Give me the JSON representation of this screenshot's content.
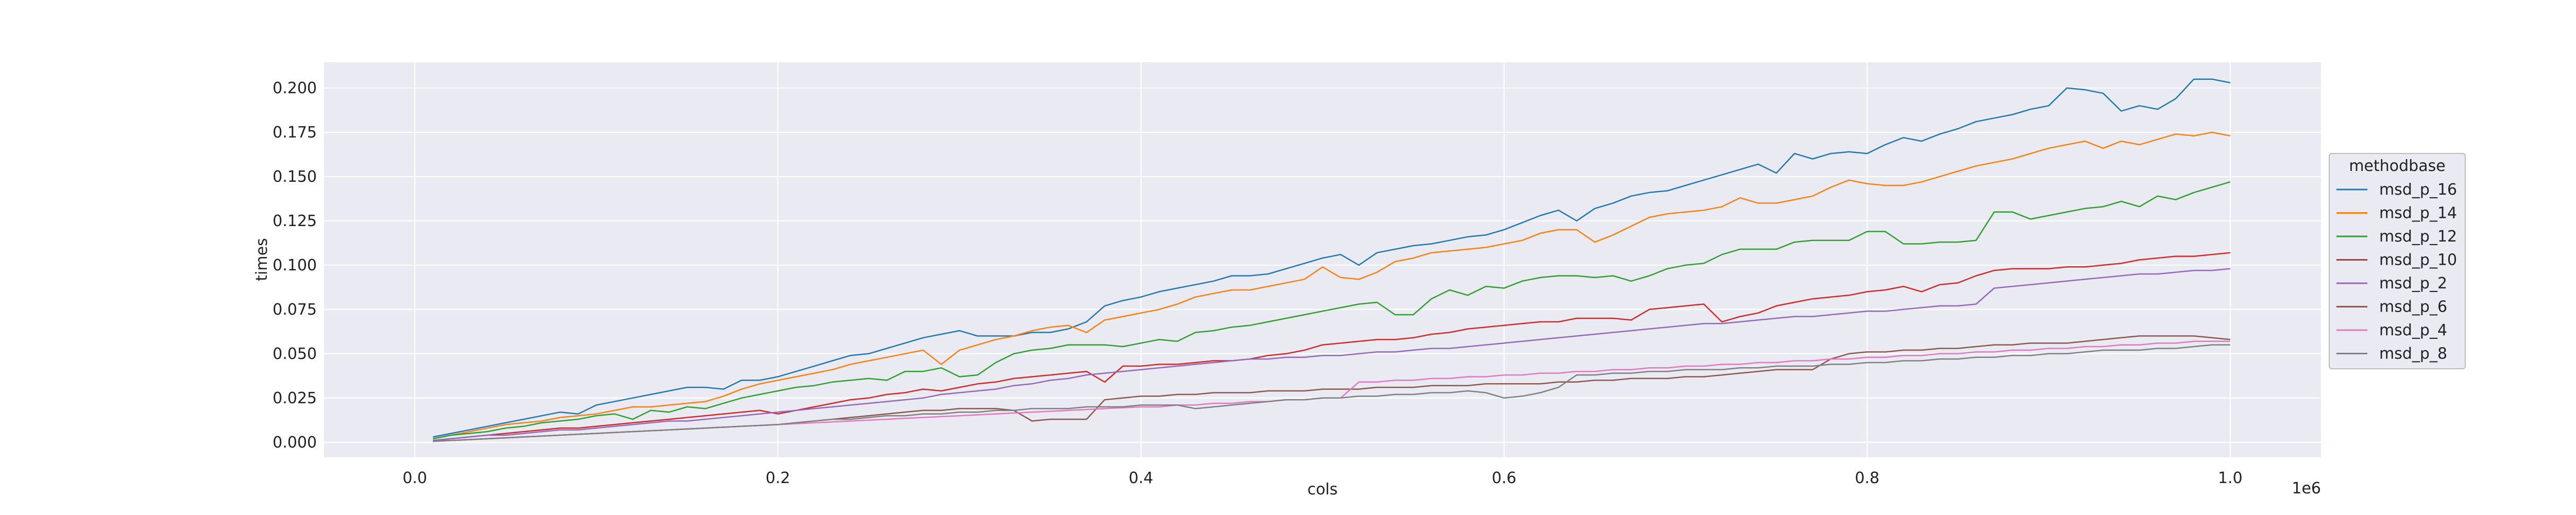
{
  "chart_data": {
    "type": "line",
    "xlabel": "cols",
    "ylabel": "times",
    "x_exponent_label": "1e6",
    "xlim": [
      -50000,
      1050000
    ],
    "ylim": [
      -0.0085,
      0.2145
    ],
    "x_ticks": [
      0,
      0.2,
      0.4,
      0.6,
      0.8,
      1.0
    ],
    "x_tick_labels": [
      "0.0",
      "0.2",
      "0.4",
      "0.6",
      "0.8",
      "1.0"
    ],
    "x_tick_values": [
      0,
      200000,
      400000,
      600000,
      800000,
      1000000
    ],
    "y_ticks": [
      0.0,
      0.025,
      0.05,
      0.075,
      0.1,
      0.125,
      0.15,
      0.175,
      0.2
    ],
    "y_tick_labels": [
      "0.000",
      "0.025",
      "0.050",
      "0.075",
      "0.100",
      "0.125",
      "0.150",
      "0.175",
      "0.200"
    ],
    "grid": true,
    "legend_title": "methodbase",
    "legend_position": "right",
    "x": [
      10000,
      20000,
      30000,
      40000,
      50000,
      60000,
      70000,
      80000,
      90000,
      100000,
      110000,
      120000,
      130000,
      140000,
      150000,
      160000,
      170000,
      180000,
      190000,
      200000,
      210000,
      220000,
      230000,
      240000,
      250000,
      260000,
      270000,
      280000,
      290000,
      300000,
      310000,
      320000,
      330000,
      340000,
      350000,
      360000,
      370000,
      380000,
      390000,
      400000,
      410000,
      420000,
      430000,
      440000,
      450000,
      460000,
      470000,
      480000,
      490000,
      500000,
      510000,
      520000,
      530000,
      540000,
      550000,
      560000,
      570000,
      580000,
      590000,
      600000,
      610000,
      620000,
      630000,
      640000,
      650000,
      660000,
      670000,
      680000,
      690000,
      700000,
      710000,
      720000,
      730000,
      740000,
      750000,
      760000,
      770000,
      780000,
      790000,
      800000,
      810000,
      820000,
      830000,
      840000,
      850000,
      860000,
      870000,
      880000,
      890000,
      900000,
      910000,
      920000,
      930000,
      940000,
      950000,
      960000,
      970000,
      980000,
      990000,
      1000000
    ],
    "series": [
      {
        "name": "msd_p_16",
        "color": "#1f77b4",
        "values": [
          0.003,
          0.005,
          0.007,
          0.009,
          0.011,
          0.013,
          0.015,
          0.017,
          0.016,
          0.021,
          0.023,
          0.025,
          0.027,
          0.029,
          0.031,
          0.031,
          0.03,
          0.035,
          0.035,
          0.037,
          0.04,
          0.043,
          0.046,
          0.049,
          0.05,
          0.053,
          0.056,
          0.059,
          0.061,
          0.063,
          0.06,
          0.06,
          0.06,
          0.062,
          0.062,
          0.064,
          0.068,
          0.077,
          0.08,
          0.082,
          0.085,
          0.087,
          0.089,
          0.091,
          0.094,
          0.094,
          0.095,
          0.098,
          0.101,
          0.104,
          0.106,
          0.1,
          0.107,
          0.109,
          0.111,
          0.112,
          0.114,
          0.116,
          0.117,
          0.12,
          0.124,
          0.128,
          0.131,
          0.125,
          0.132,
          0.135,
          0.139,
          0.141,
          0.142,
          0.145,
          0.148,
          0.151,
          0.154,
          0.157,
          0.152,
          0.163,
          0.16,
          0.163,
          0.164,
          0.163,
          0.168,
          0.172,
          0.17,
          0.174,
          0.177,
          0.181,
          0.183,
          0.185,
          0.188,
          0.19,
          0.2,
          0.199,
          0.197,
          0.187,
          0.19,
          0.188,
          0.194,
          0.205,
          0.205,
          0.203
        ]
      },
      {
        "name": "msd_p_14",
        "color": "#ff7f0e",
        "values": [
          0.002,
          0.004,
          0.006,
          0.008,
          0.01,
          0.011,
          0.012,
          0.014,
          0.015,
          0.016,
          0.018,
          0.02,
          0.02,
          0.021,
          0.022,
          0.023,
          0.026,
          0.03,
          0.033,
          0.035,
          0.037,
          0.039,
          0.041,
          0.044,
          0.046,
          0.048,
          0.05,
          0.052,
          0.044,
          0.052,
          0.055,
          0.058,
          0.06,
          0.063,
          0.065,
          0.066,
          0.062,
          0.069,
          0.071,
          0.073,
          0.075,
          0.078,
          0.082,
          0.084,
          0.086,
          0.086,
          0.088,
          0.09,
          0.092,
          0.099,
          0.093,
          0.092,
          0.096,
          0.102,
          0.104,
          0.107,
          0.108,
          0.109,
          0.11,
          0.112,
          0.114,
          0.118,
          0.12,
          0.12,
          0.113,
          0.117,
          0.122,
          0.127,
          0.129,
          0.13,
          0.131,
          0.133,
          0.138,
          0.135,
          0.135,
          0.137,
          0.139,
          0.144,
          0.148,
          0.146,
          0.145,
          0.145,
          0.147,
          0.15,
          0.153,
          0.156,
          0.158,
          0.16,
          0.163,
          0.166,
          0.168,
          0.17,
          0.166,
          0.17,
          0.168,
          0.171,
          0.174,
          0.173,
          0.175,
          0.173
        ]
      },
      {
        "name": "msd_p_12",
        "color": "#2ca02c",
        "values": [
          0.002,
          0.004,
          0.005,
          0.006,
          0.008,
          0.009,
          0.011,
          0.012,
          0.013,
          0.015,
          0.016,
          0.013,
          0.018,
          0.017,
          0.02,
          0.019,
          0.022,
          0.025,
          0.027,
          0.029,
          0.031,
          0.032,
          0.034,
          0.035,
          0.036,
          0.035,
          0.04,
          0.04,
          0.042,
          0.037,
          0.038,
          0.045,
          0.05,
          0.052,
          0.053,
          0.055,
          0.055,
          0.055,
          0.054,
          0.056,
          0.058,
          0.057,
          0.062,
          0.063,
          0.065,
          0.066,
          0.068,
          0.07,
          0.072,
          0.074,
          0.076,
          0.078,
          0.079,
          0.072,
          0.072,
          0.081,
          0.086,
          0.083,
          0.088,
          0.087,
          0.091,
          0.093,
          0.094,
          0.094,
          0.093,
          0.094,
          0.091,
          0.094,
          0.098,
          0.1,
          0.101,
          0.106,
          0.109,
          0.109,
          0.109,
          0.113,
          0.114,
          0.114,
          0.114,
          0.119,
          0.119,
          0.112,
          0.112,
          0.113,
          0.113,
          0.114,
          0.13,
          0.13,
          0.126,
          0.128,
          0.13,
          0.132,
          0.133,
          0.136,
          0.133,
          0.139,
          0.137,
          0.141,
          0.144,
          0.147
        ]
      },
      {
        "name": "msd_p_10",
        "color": "#d62728",
        "values": [
          0.001,
          0.002,
          0.003,
          0.004,
          0.005,
          0.006,
          0.007,
          0.008,
          0.008,
          0.009,
          0.01,
          0.011,
          0.012,
          0.013,
          0.014,
          0.015,
          0.016,
          0.017,
          0.018,
          0.016,
          0.018,
          0.02,
          0.022,
          0.024,
          0.025,
          0.027,
          0.028,
          0.03,
          0.029,
          0.031,
          0.033,
          0.034,
          0.036,
          0.037,
          0.038,
          0.039,
          0.04,
          0.034,
          0.043,
          0.043,
          0.044,
          0.044,
          0.045,
          0.046,
          0.046,
          0.047,
          0.049,
          0.05,
          0.052,
          0.055,
          0.056,
          0.057,
          0.058,
          0.058,
          0.059,
          0.061,
          0.062,
          0.064,
          0.065,
          0.066,
          0.067,
          0.068,
          0.068,
          0.07,
          0.07,
          0.07,
          0.069,
          0.075,
          0.076,
          0.077,
          0.078,
          0.068,
          0.071,
          0.073,
          0.077,
          0.079,
          0.081,
          0.082,
          0.083,
          0.085,
          0.086,
          0.088,
          0.085,
          0.089,
          0.09,
          0.094,
          0.097,
          0.098,
          0.098,
          0.098,
          0.099,
          0.099,
          0.1,
          0.101,
          0.103,
          0.104,
          0.105,
          0.105,
          0.106,
          0.107
        ]
      },
      {
        "name": "msd_p_2",
        "color": "#9467bd",
        "values": [
          0.001,
          0.002,
          0.003,
          0.004,
          0.004,
          0.005,
          0.006,
          0.007,
          0.007,
          0.008,
          0.009,
          0.01,
          0.011,
          0.012,
          0.012,
          0.013,
          0.014,
          0.015,
          0.016,
          0.017,
          0.018,
          0.019,
          0.02,
          0.021,
          0.022,
          0.023,
          0.024,
          0.025,
          0.027,
          0.028,
          0.029,
          0.03,
          0.032,
          0.033,
          0.035,
          0.036,
          0.038,
          0.039,
          0.04,
          0.041,
          0.042,
          0.043,
          0.044,
          0.045,
          0.046,
          0.047,
          0.047,
          0.048,
          0.048,
          0.049,
          0.049,
          0.05,
          0.051,
          0.051,
          0.052,
          0.053,
          0.053,
          0.054,
          0.055,
          0.056,
          0.057,
          0.058,
          0.059,
          0.06,
          0.061,
          0.062,
          0.063,
          0.064,
          0.065,
          0.066,
          0.067,
          0.067,
          0.068,
          0.069,
          0.07,
          0.071,
          0.071,
          0.072,
          0.073,
          0.074,
          0.074,
          0.075,
          0.076,
          0.077,
          0.077,
          0.078,
          0.087,
          0.088,
          0.089,
          0.09,
          0.091,
          0.092,
          0.093,
          0.094,
          0.095,
          0.095,
          0.096,
          0.097,
          0.097,
          0.098
        ]
      },
      {
        "name": "msd_p_6",
        "color": "#8c564b",
        "values": [
          0.0005,
          0.001,
          0.0015,
          0.002,
          0.0025,
          0.003,
          0.0035,
          0.004,
          0.0045,
          0.005,
          0.0055,
          0.006,
          0.0065,
          0.007,
          0.0075,
          0.008,
          0.0085,
          0.009,
          0.0095,
          0.01,
          0.011,
          0.012,
          0.013,
          0.014,
          0.015,
          0.016,
          0.017,
          0.018,
          0.018,
          0.019,
          0.019,
          0.019,
          0.018,
          0.012,
          0.013,
          0.013,
          0.013,
          0.024,
          0.025,
          0.026,
          0.026,
          0.027,
          0.027,
          0.028,
          0.028,
          0.028,
          0.029,
          0.029,
          0.029,
          0.03,
          0.03,
          0.03,
          0.031,
          0.031,
          0.031,
          0.032,
          0.032,
          0.032,
          0.033,
          0.033,
          0.033,
          0.033,
          0.034,
          0.034,
          0.035,
          0.035,
          0.036,
          0.036,
          0.036,
          0.037,
          0.037,
          0.038,
          0.039,
          0.04,
          0.041,
          0.041,
          0.041,
          0.047,
          0.05,
          0.051,
          0.051,
          0.052,
          0.052,
          0.053,
          0.053,
          0.054,
          0.055,
          0.055,
          0.056,
          0.056,
          0.056,
          0.057,
          0.058,
          0.059,
          0.06,
          0.06,
          0.06,
          0.06,
          0.059,
          0.058
        ]
      },
      {
        "name": "msd_p_4",
        "color": "#e377c2",
        "values": [
          0.0005,
          0.001,
          0.0015,
          0.002,
          0.0025,
          0.003,
          0.0035,
          0.004,
          0.0045,
          0.005,
          0.0055,
          0.006,
          0.0065,
          0.007,
          0.0075,
          0.008,
          0.0085,
          0.009,
          0.0095,
          0.01,
          0.0105,
          0.011,
          0.0115,
          0.012,
          0.0125,
          0.013,
          0.0135,
          0.014,
          0.0145,
          0.015,
          0.0155,
          0.016,
          0.0165,
          0.017,
          0.0175,
          0.018,
          0.0185,
          0.019,
          0.0195,
          0.02,
          0.02,
          0.021,
          0.021,
          0.022,
          0.022,
          0.023,
          0.023,
          0.024,
          0.024,
          0.025,
          0.025,
          0.034,
          0.034,
          0.035,
          0.035,
          0.036,
          0.036,
          0.037,
          0.037,
          0.038,
          0.038,
          0.039,
          0.039,
          0.04,
          0.04,
          0.041,
          0.041,
          0.042,
          0.042,
          0.043,
          0.043,
          0.044,
          0.044,
          0.045,
          0.045,
          0.046,
          0.046,
          0.047,
          0.047,
          0.048,
          0.048,
          0.049,
          0.049,
          0.05,
          0.05,
          0.051,
          0.051,
          0.052,
          0.052,
          0.053,
          0.053,
          0.054,
          0.054,
          0.055,
          0.055,
          0.056,
          0.056,
          0.057,
          0.057,
          0.057
        ]
      },
      {
        "name": "msd_p_8",
        "color": "#7f7f7f",
        "values": [
          0.0005,
          0.001,
          0.0015,
          0.002,
          0.0025,
          0.003,
          0.0035,
          0.004,
          0.0045,
          0.005,
          0.0055,
          0.006,
          0.0065,
          0.007,
          0.0075,
          0.008,
          0.0085,
          0.009,
          0.0095,
          0.01,
          0.011,
          0.012,
          0.013,
          0.013,
          0.014,
          0.015,
          0.015,
          0.016,
          0.016,
          0.017,
          0.017,
          0.018,
          0.018,
          0.019,
          0.019,
          0.019,
          0.02,
          0.02,
          0.02,
          0.021,
          0.021,
          0.021,
          0.019,
          0.02,
          0.021,
          0.022,
          0.023,
          0.024,
          0.024,
          0.025,
          0.025,
          0.026,
          0.026,
          0.027,
          0.027,
          0.028,
          0.028,
          0.029,
          0.028,
          0.025,
          0.026,
          0.028,
          0.031,
          0.038,
          0.038,
          0.039,
          0.039,
          0.04,
          0.04,
          0.041,
          0.041,
          0.041,
          0.042,
          0.042,
          0.043,
          0.043,
          0.043,
          0.044,
          0.044,
          0.045,
          0.045,
          0.046,
          0.046,
          0.047,
          0.047,
          0.048,
          0.048,
          0.049,
          0.049,
          0.05,
          0.05,
          0.051,
          0.052,
          0.052,
          0.052,
          0.053,
          0.053,
          0.054,
          0.055,
          0.055
        ]
      }
    ]
  }
}
